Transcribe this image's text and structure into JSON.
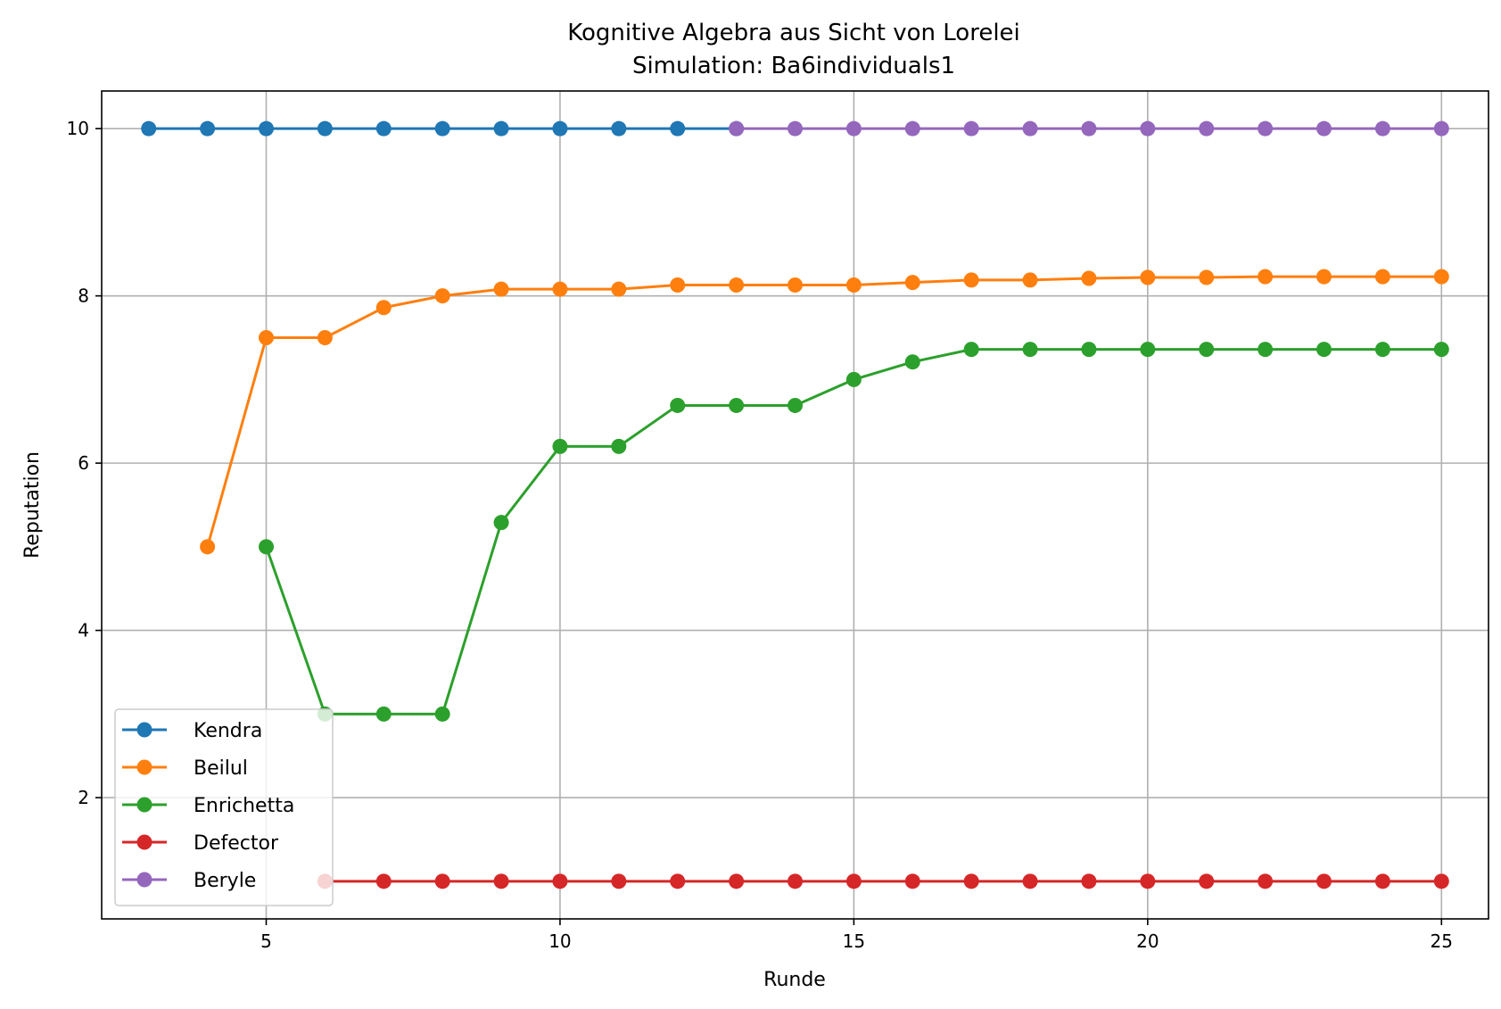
{
  "chart_data": {
    "type": "line",
    "title": "Kognitive Algebra aus Sicht von Lorelei",
    "subtitle": "Simulation: Ba6individuals1",
    "xlabel": "Runde",
    "ylabel": "Reputation",
    "xlim": [
      2.2,
      25.8
    ],
    "ylim": [
      0.55,
      10.45
    ],
    "xticks": [
      5,
      10,
      15,
      20,
      25
    ],
    "yticks": [
      2,
      4,
      6,
      8,
      10
    ],
    "grid": true,
    "legend_position": "lower-left",
    "series": [
      {
        "name": "Kendra",
        "color": "#1f77b4",
        "x": [
          3,
          4,
          5,
          6,
          7,
          8,
          9,
          10,
          11,
          12,
          13
        ],
        "y": [
          10,
          10,
          10,
          10,
          10,
          10,
          10,
          10,
          10,
          10,
          10
        ]
      },
      {
        "name": "Beilul",
        "color": "#ff7f0e",
        "x": [
          4,
          5,
          6,
          7,
          8,
          9,
          10,
          11,
          12,
          13,
          14,
          15,
          16,
          17,
          18,
          19,
          20,
          21,
          22,
          23,
          24,
          25
        ],
        "y": [
          5.0,
          7.5,
          7.5,
          7.86,
          8.0,
          8.08,
          8.08,
          8.08,
          8.13,
          8.13,
          8.13,
          8.13,
          8.16,
          8.19,
          8.19,
          8.21,
          8.22,
          8.22,
          8.23,
          8.23,
          8.23,
          8.23
        ]
      },
      {
        "name": "Enrichetta",
        "color": "#2ca02c",
        "x": [
          5,
          6,
          7,
          8,
          9,
          10,
          11,
          12,
          13,
          14,
          15,
          16,
          17,
          18,
          19,
          20,
          21,
          22,
          23,
          24,
          25
        ],
        "y": [
          5.0,
          3.0,
          3.0,
          3.0,
          5.29,
          6.2,
          6.2,
          6.69,
          6.69,
          6.69,
          7.0,
          7.21,
          7.36,
          7.36,
          7.36,
          7.36,
          7.36,
          7.36,
          7.36,
          7.36,
          7.36
        ]
      },
      {
        "name": "Defector",
        "color": "#d62728",
        "x": [
          6,
          7,
          8,
          9,
          10,
          11,
          12,
          13,
          14,
          15,
          16,
          17,
          18,
          19,
          20,
          21,
          22,
          23,
          24,
          25
        ],
        "y": [
          1,
          1,
          1,
          1,
          1,
          1,
          1,
          1,
          1,
          1,
          1,
          1,
          1,
          1,
          1,
          1,
          1,
          1,
          1,
          1
        ]
      },
      {
        "name": "Beryle",
        "color": "#9467bd",
        "x": [
          13,
          14,
          15,
          16,
          17,
          18,
          19,
          20,
          21,
          22,
          23,
          24,
          25
        ],
        "y": [
          10,
          10,
          10,
          10,
          10,
          10,
          10,
          10,
          10,
          10,
          10,
          10,
          10
        ]
      }
    ]
  }
}
